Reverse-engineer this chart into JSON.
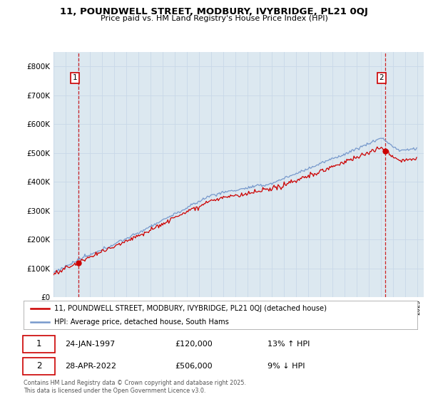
{
  "title": "11, POUNDWELL STREET, MODBURY, IVYBRIDGE, PL21 0QJ",
  "subtitle": "Price paid vs. HM Land Registry's House Price Index (HPI)",
  "ylim": [
    0,
    850000
  ],
  "yticks": [
    0,
    100000,
    200000,
    300000,
    400000,
    500000,
    600000,
    700000,
    800000
  ],
  "ytick_labels": [
    "£0",
    "£100K",
    "£200K",
    "£300K",
    "£400K",
    "£500K",
    "£600K",
    "£700K",
    "£800K"
  ],
  "sale1_t": 2.08,
  "sale1_price": 120000,
  "sale1_label": "1",
  "sale1_date_str": "24-JAN-1997",
  "sale1_price_str": "£120,000",
  "sale1_rel_str": "13% ↑ HPI",
  "sale2_t": 27.33,
  "sale2_price": 506000,
  "sale2_label": "2",
  "sale2_date_str": "28-APR-2022",
  "sale2_price_str": "£506,000",
  "sale2_rel_str": "9% ↓ HPI",
  "line_color_red": "#cc0000",
  "line_color_blue": "#7799cc",
  "marker_color": "#cc0000",
  "grid_color": "#c8d8e8",
  "plot_bg": "#dce8f0",
  "legend_label_red": "11, POUNDWELL STREET, MODBURY, IVYBRIDGE, PL21 0QJ (detached house)",
  "legend_label_blue": "HPI: Average price, detached house, South Hams",
  "footer": "Contains HM Land Registry data © Crown copyright and database right 2025.\nThis data is licensed under the Open Government Licence v3.0.",
  "x_start_year": 1995,
  "x_end_year": 2025
}
